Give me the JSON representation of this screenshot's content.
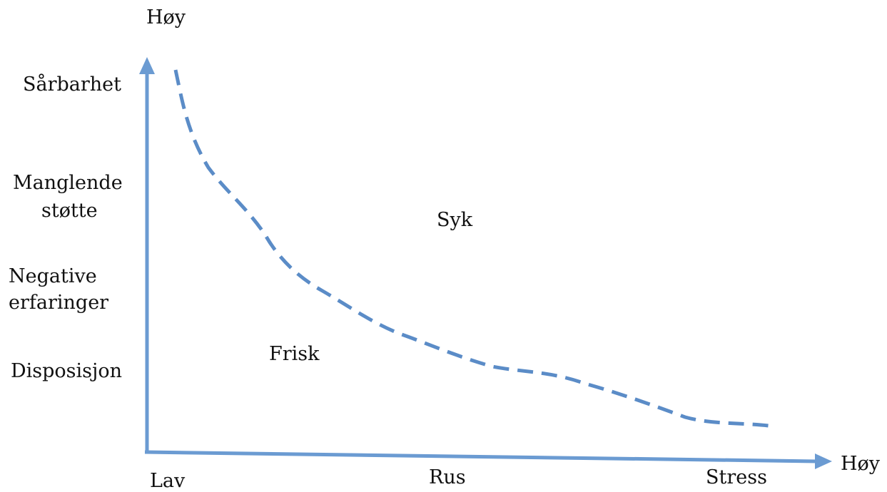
{
  "y_axis": {
    "top_label": "Høy",
    "factors": [
      "Sårbarhet",
      "Manglende",
      "støtte",
      "Negative",
      "erfaringer",
      "Disposisjon"
    ]
  },
  "x_axis": {
    "end_label": "Høy",
    "factors": [
      "Lav",
      "Rus",
      "Stress"
    ]
  },
  "regions": {
    "above": "Syk",
    "below": "Frisk"
  },
  "colors": {
    "axis": "#6b9bd2",
    "curve": "#5b8cc7",
    "text": "#111111"
  }
}
